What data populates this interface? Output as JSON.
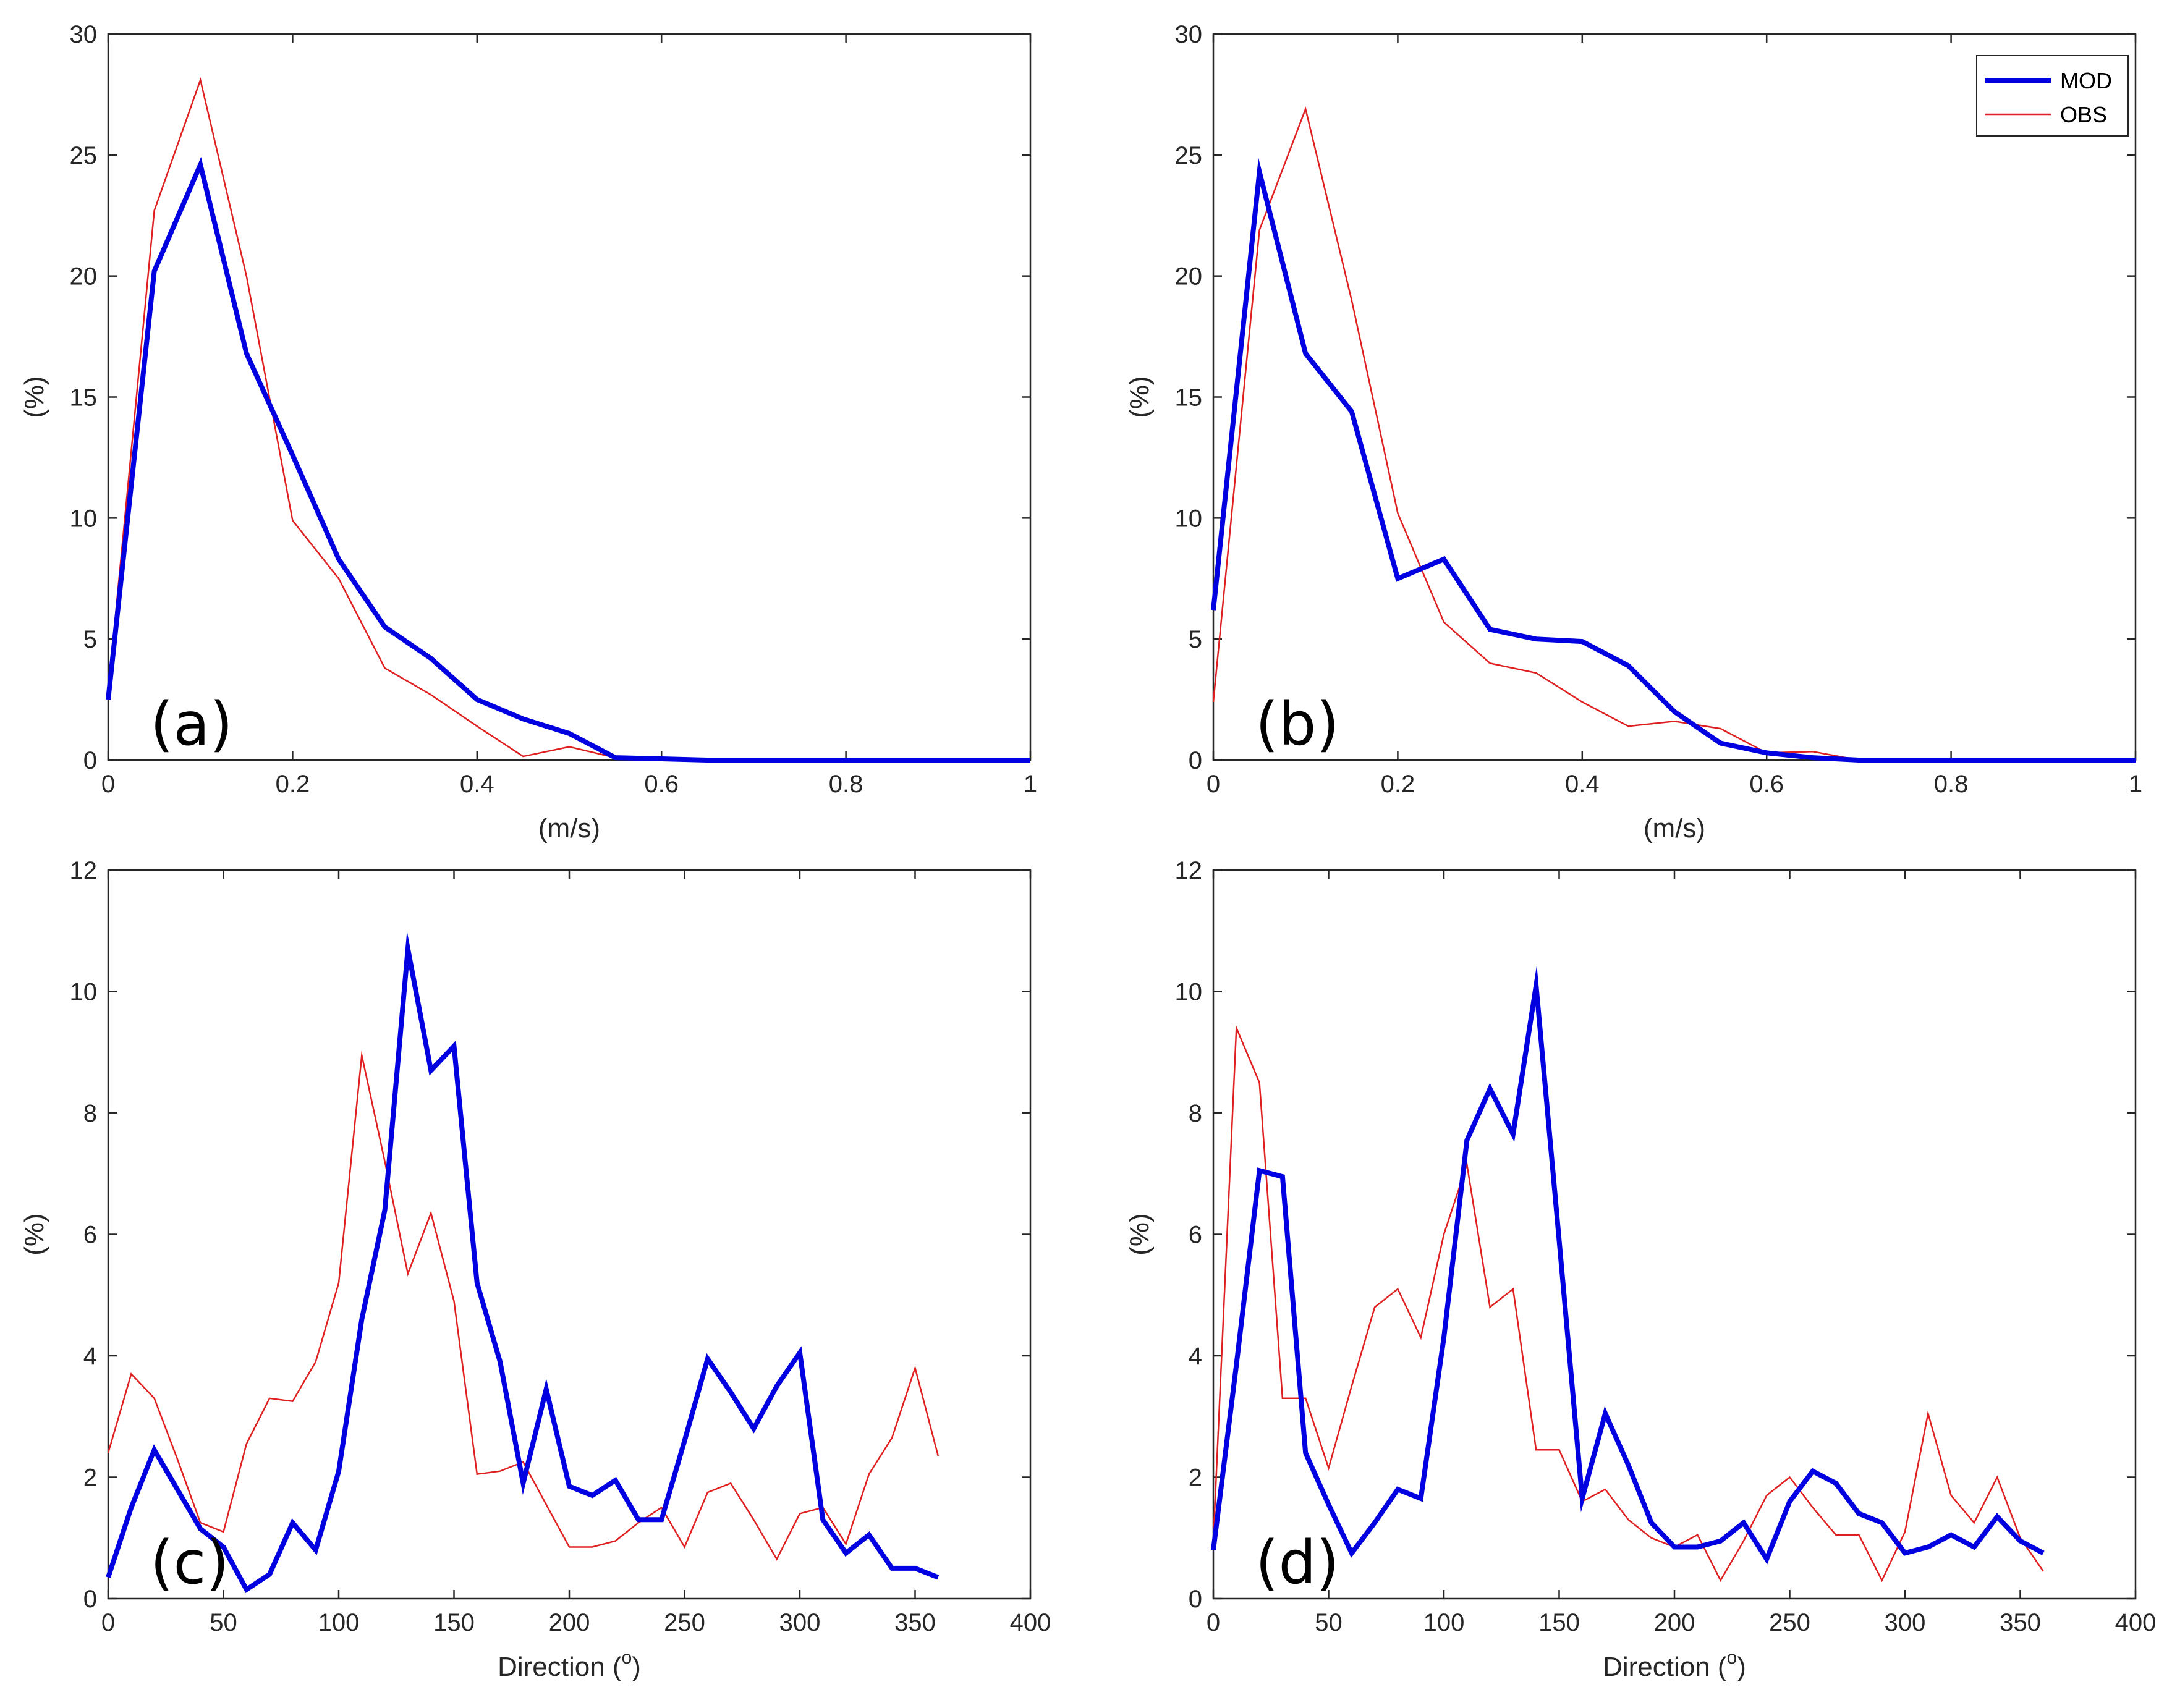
{
  "colors": {
    "mod": "#0000e0",
    "obs": "#e02020",
    "axis": "#262626"
  },
  "legend": {
    "mod": "MOD",
    "obs": "OBS"
  },
  "chart_data": [
    {
      "type": "line",
      "panel_label": "(a)",
      "xlabel": "(m/s)",
      "ylabel": "(%)",
      "xlim": [
        0,
        1
      ],
      "ylim": [
        0,
        30
      ],
      "xticks": [
        "0",
        "0.2",
        "0.4",
        "0.6",
        "0.8",
        "1"
      ],
      "yticks": [
        "0",
        "5",
        "10",
        "15",
        "20",
        "25",
        "30"
      ],
      "xtick_values": [
        0,
        0.2,
        0.4,
        0.6,
        0.8,
        1
      ],
      "ytick_values": [
        0,
        5,
        10,
        15,
        20,
        25,
        30
      ],
      "show_legend": false,
      "series": [
        {
          "name": "MOD",
          "x": [
            0,
            0.05,
            0.1,
            0.15,
            0.2,
            0.25,
            0.3,
            0.35,
            0.4,
            0.45,
            0.5,
            0.55,
            0.6,
            0.65,
            0.7,
            0.75,
            0.8,
            0.85,
            0.9,
            0.95,
            1
          ],
          "y": [
            2.5,
            20.2,
            24.6,
            16.8,
            12.6,
            8.3,
            5.5,
            4.2,
            2.5,
            1.7,
            1.1,
            0.1,
            0.05,
            0,
            0,
            0,
            0,
            0,
            0,
            0,
            0
          ]
        },
        {
          "name": "OBS",
          "x": [
            0,
            0.05,
            0.1,
            0.15,
            0.2,
            0.25,
            0.3,
            0.35,
            0.4,
            0.45,
            0.5,
            0.55,
            0.6,
            0.65,
            0.7,
            0.75,
            0.8,
            0.85,
            0.9,
            0.95,
            1
          ],
          "y": [
            2.8,
            22.7,
            28.1,
            20.0,
            9.9,
            7.5,
            3.8,
            2.7,
            1.4,
            0.15,
            0.55,
            0.1,
            0.05,
            0,
            0,
            0,
            0,
            0,
            0,
            0,
            0
          ]
        }
      ]
    },
    {
      "type": "line",
      "panel_label": "(b)",
      "xlabel": "(m/s)",
      "ylabel": "(%)",
      "xlim": [
        0,
        1
      ],
      "ylim": [
        0,
        30
      ],
      "xticks": [
        "0",
        "0.2",
        "0.4",
        "0.6",
        "0.8",
        "1"
      ],
      "yticks": [
        "0",
        "5",
        "10",
        "15",
        "20",
        "25",
        "30"
      ],
      "xtick_values": [
        0,
        0.2,
        0.4,
        0.6,
        0.8,
        1
      ],
      "ytick_values": [
        0,
        5,
        10,
        15,
        20,
        25,
        30
      ],
      "show_legend": true,
      "legend_position": "top-right",
      "series": [
        {
          "name": "MOD",
          "x": [
            0,
            0.05,
            0.1,
            0.15,
            0.2,
            0.25,
            0.3,
            0.35,
            0.4,
            0.45,
            0.5,
            0.55,
            0.6,
            0.65,
            0.7,
            0.75,
            0.8,
            0.85,
            0.9,
            0.95,
            1
          ],
          "y": [
            6.2,
            24.3,
            16.8,
            14.4,
            7.5,
            8.3,
            5.4,
            5.0,
            4.9,
            3.9,
            2.0,
            0.7,
            0.3,
            0.1,
            0,
            0,
            0,
            0,
            0,
            0,
            0
          ]
        },
        {
          "name": "OBS",
          "x": [
            0,
            0.05,
            0.1,
            0.15,
            0.2,
            0.25,
            0.3,
            0.35,
            0.4,
            0.45,
            0.5,
            0.55,
            0.6,
            0.65,
            0.7,
            0.75,
            0.8,
            0.85,
            0.9,
            0.95,
            1
          ],
          "y": [
            2.4,
            21.9,
            26.9,
            19.0,
            10.2,
            5.7,
            4.0,
            3.6,
            2.4,
            1.4,
            1.6,
            1.3,
            0.3,
            0.35,
            0,
            0,
            0,
            0,
            0,
            0,
            0
          ]
        }
      ]
    },
    {
      "type": "line",
      "panel_label": "(c)",
      "xlabel": "Direction (°)",
      "xlabel_main": "Direction (",
      "xlabel_sup": "o",
      "xlabel_end": ")",
      "ylabel": "(%)",
      "xlim": [
        0,
        400
      ],
      "ylim": [
        0,
        12
      ],
      "xticks": [
        "0",
        "50",
        "100",
        "150",
        "200",
        "250",
        "300",
        "350",
        "400"
      ],
      "yticks": [
        "0",
        "2",
        "4",
        "6",
        "8",
        "10",
        "12"
      ],
      "xtick_values": [
        0,
        50,
        100,
        150,
        200,
        250,
        300,
        350,
        400
      ],
      "ytick_values": [
        0,
        2,
        4,
        6,
        8,
        10,
        12
      ],
      "show_legend": false,
      "series": [
        {
          "name": "MOD",
          "x": [
            0,
            10,
            20,
            30,
            40,
            50,
            60,
            70,
            80,
            90,
            100,
            110,
            120,
            130,
            140,
            150,
            160,
            170,
            180,
            190,
            200,
            210,
            220,
            230,
            240,
            250,
            260,
            270,
            280,
            290,
            300,
            310,
            320,
            330,
            340,
            350,
            360
          ],
          "y": [
            0.35,
            1.5,
            2.45,
            1.8,
            1.15,
            0.85,
            0.15,
            0.4,
            1.25,
            0.8,
            2.1,
            4.6,
            6.4,
            10.7,
            8.7,
            9.1,
            5.2,
            3.9,
            1.9,
            3.45,
            1.85,
            1.7,
            1.95,
            1.3,
            1.3,
            2.6,
            3.95,
            3.4,
            2.8,
            3.5,
            4.05,
            1.3,
            0.75,
            1.05,
            0.5,
            0.5,
            0.35
          ]
        },
        {
          "name": "OBS",
          "x": [
            0,
            10,
            20,
            30,
            40,
            50,
            60,
            70,
            80,
            90,
            100,
            110,
            120,
            130,
            140,
            150,
            160,
            170,
            180,
            190,
            200,
            210,
            220,
            230,
            240,
            250,
            260,
            270,
            280,
            290,
            300,
            310,
            320,
            330,
            340,
            350,
            360
          ],
          "y": [
            2.4,
            3.7,
            3.3,
            2.3,
            1.25,
            1.1,
            2.55,
            3.3,
            3.25,
            3.9,
            5.2,
            8.95,
            7.2,
            5.35,
            6.35,
            4.9,
            2.05,
            2.1,
            2.25,
            1.55,
            0.85,
            0.85,
            0.95,
            1.25,
            1.5,
            0.85,
            1.75,
            1.9,
            1.3,
            0.65,
            1.4,
            1.5,
            0.9,
            2.05,
            2.65,
            3.8,
            2.35
          ]
        }
      ]
    },
    {
      "type": "line",
      "panel_label": "(d)",
      "xlabel": "Direction (°)",
      "xlabel_main": "Direction (",
      "xlabel_sup": "o",
      "xlabel_end": ")",
      "ylabel": "(%)",
      "xlim": [
        0,
        400
      ],
      "ylim": [
        0,
        12
      ],
      "xticks": [
        "0",
        "50",
        "100",
        "150",
        "200",
        "250",
        "300",
        "350",
        "400"
      ],
      "yticks": [
        "0",
        "2",
        "4",
        "6",
        "8",
        "10",
        "12"
      ],
      "xtick_values": [
        0,
        50,
        100,
        150,
        200,
        250,
        300,
        350,
        400
      ],
      "ytick_values": [
        0,
        2,
        4,
        6,
        8,
        10,
        12
      ],
      "show_legend": false,
      "series": [
        {
          "name": "MOD",
          "x": [
            0,
            10,
            20,
            30,
            40,
            50,
            60,
            70,
            80,
            90,
            100,
            110,
            120,
            130,
            140,
            150,
            160,
            170,
            180,
            190,
            200,
            210,
            220,
            230,
            240,
            250,
            260,
            270,
            280,
            290,
            300,
            310,
            320,
            330,
            340,
            350,
            360
          ],
          "y": [
            0.8,
            3.85,
            7.05,
            6.95,
            2.4,
            1.55,
            0.75,
            1.25,
            1.8,
            1.65,
            4.3,
            7.55,
            8.4,
            7.65,
            10.1,
            5.9,
            1.65,
            3.05,
            2.2,
            1.25,
            0.85,
            0.85,
            0.95,
            1.25,
            0.65,
            1.6,
            2.1,
            1.9,
            1.4,
            1.25,
            0.75,
            0.85,
            1.05,
            0.85,
            1.35,
            0.95,
            0.75
          ]
        },
        {
          "name": "OBS",
          "x": [
            0,
            10,
            20,
            30,
            40,
            50,
            60,
            70,
            80,
            90,
            100,
            110,
            120,
            130,
            140,
            150,
            160,
            170,
            180,
            190,
            200,
            210,
            220,
            230,
            240,
            250,
            260,
            270,
            280,
            290,
            300,
            310,
            320,
            330,
            340,
            350,
            360
          ],
          "y": [
            0.95,
            9.4,
            8.5,
            3.3,
            3.3,
            2.15,
            3.5,
            4.8,
            5.1,
            4.3,
            6.0,
            7.15,
            4.8,
            5.1,
            2.45,
            2.45,
            1.6,
            1.8,
            1.3,
            1.0,
            0.85,
            1.05,
            0.3,
            0.95,
            1.7,
            2.0,
            1.5,
            1.05,
            1.05,
            0.3,
            1.1,
            3.05,
            1.7,
            1.25,
            2.0,
            1.0,
            0.45
          ]
        }
      ]
    }
  ]
}
